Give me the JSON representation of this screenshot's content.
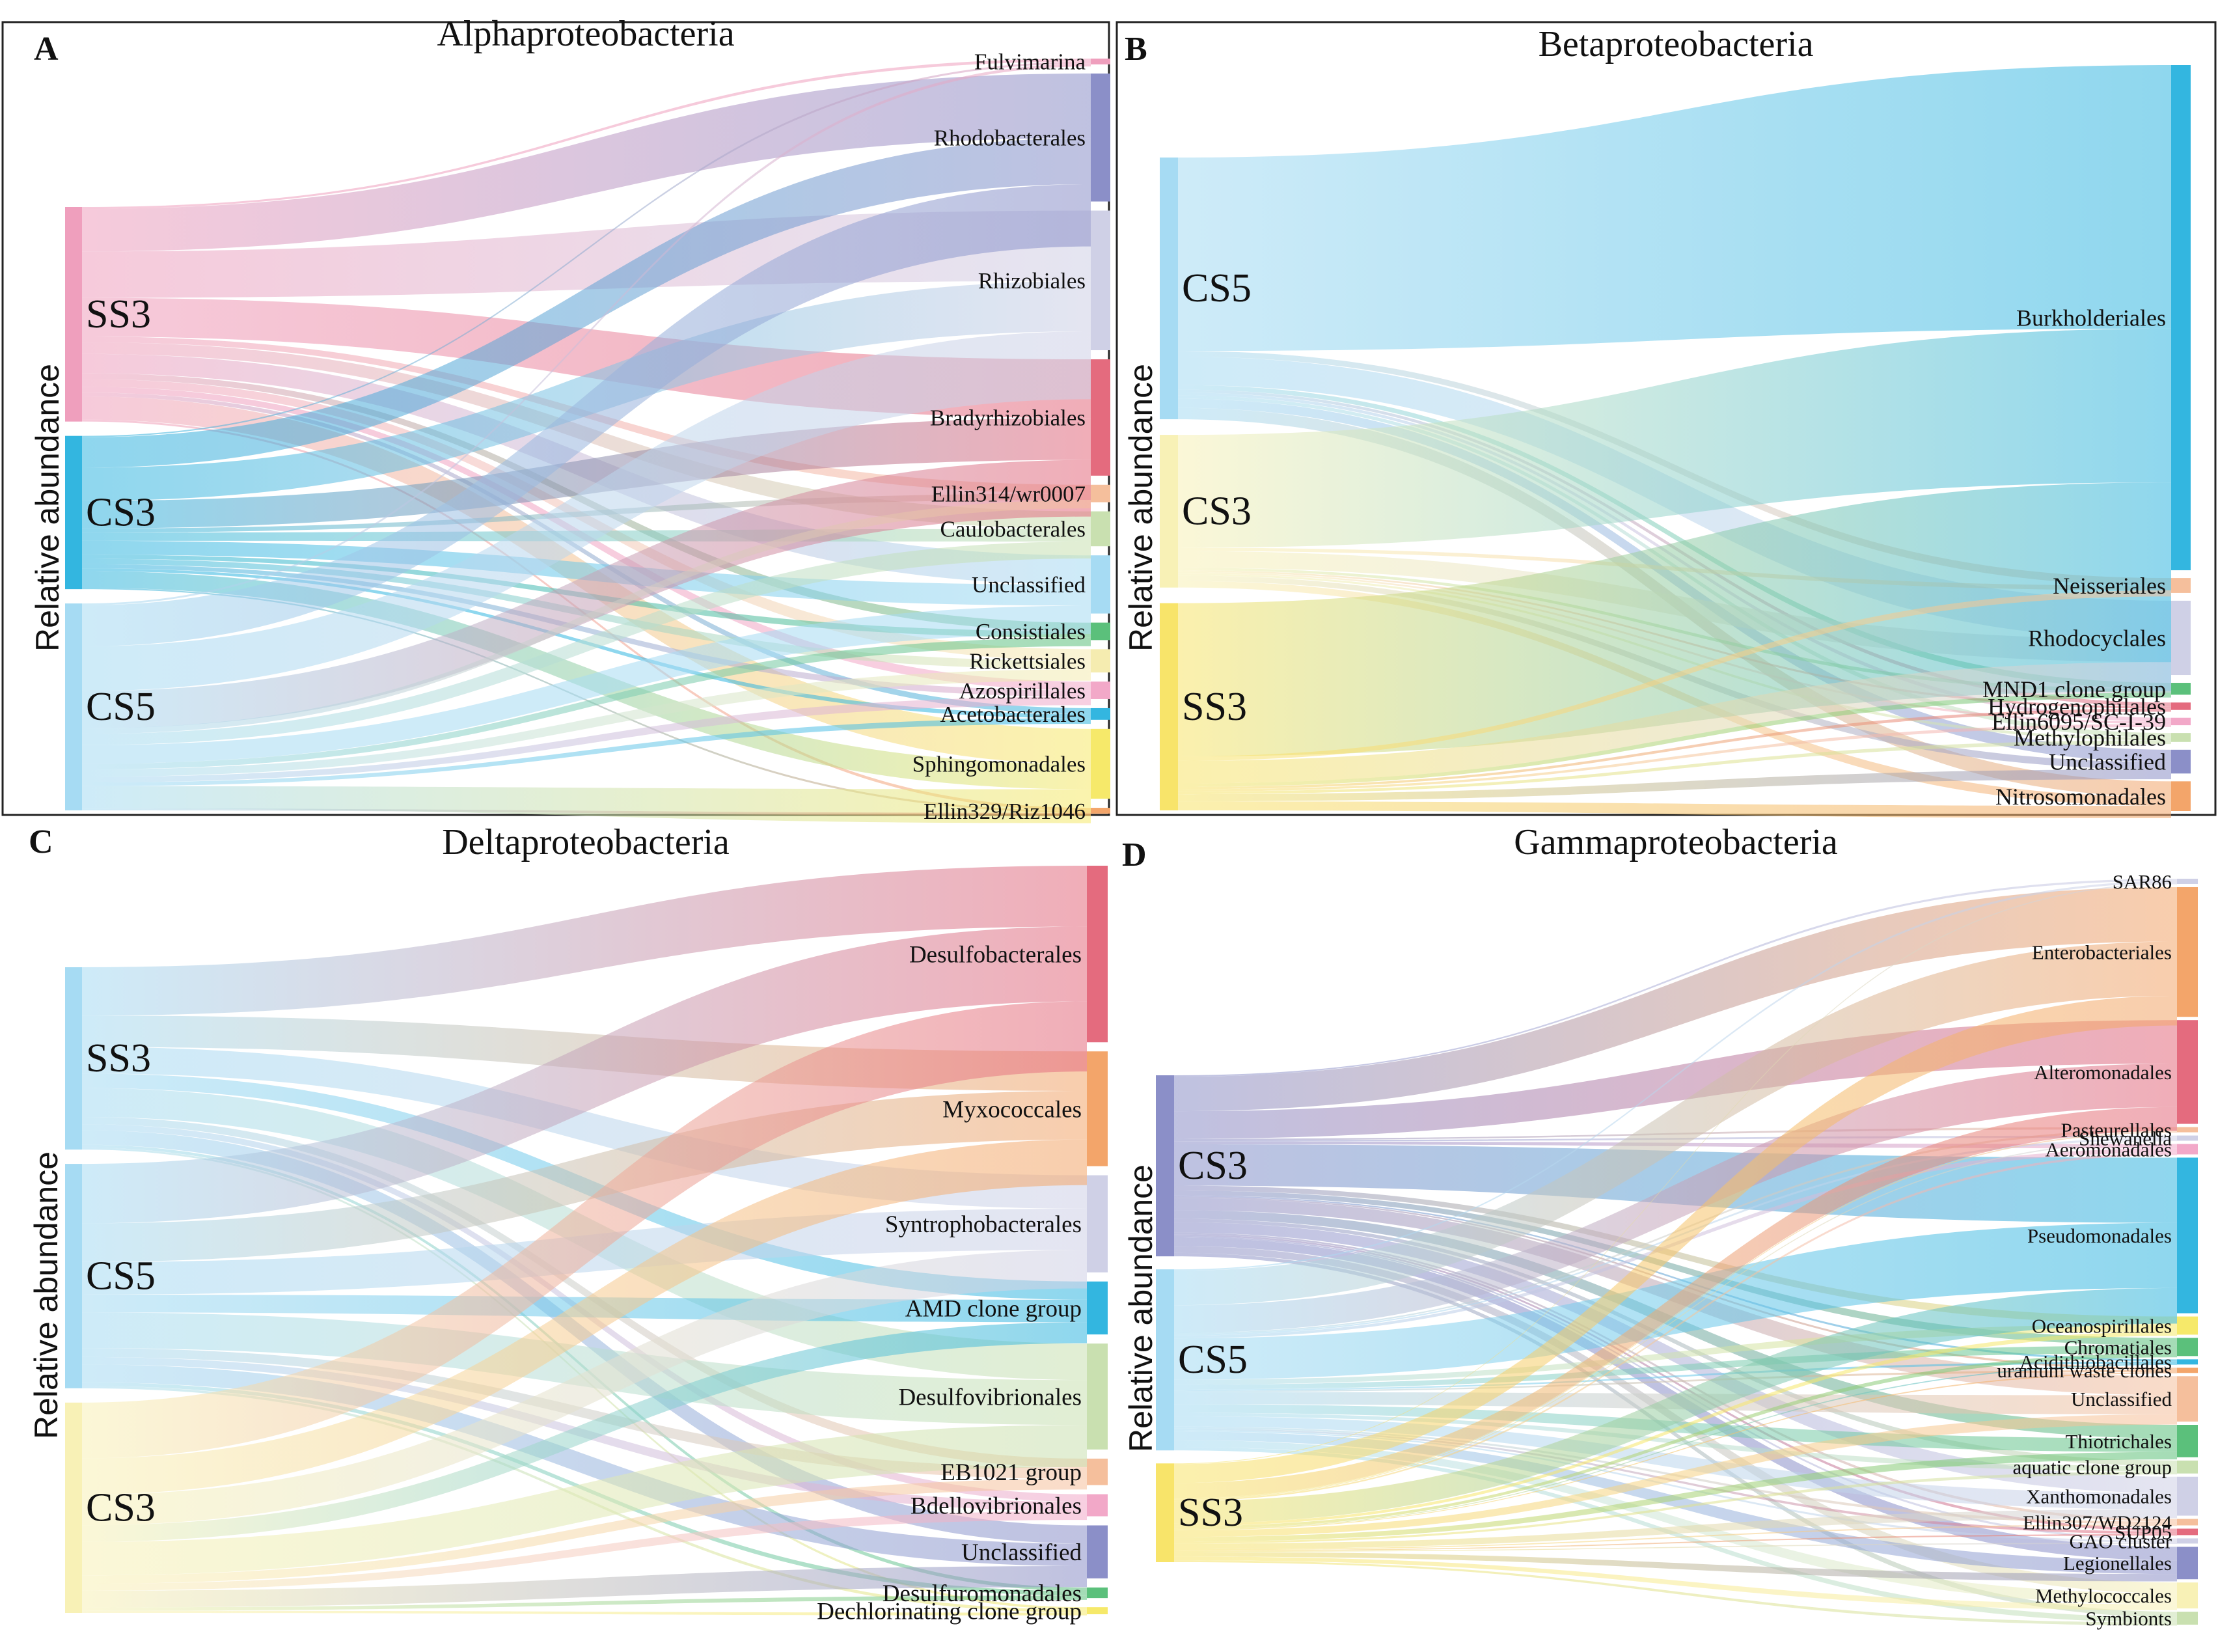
{
  "figure": {
    "y_axis_label": "Relative abundance"
  },
  "panels": [
    {
      "letter": "A",
      "title": "Alphaproteobacteria",
      "sources": [
        {
          "name": "SS3",
          "color": "#ef9fbd",
          "value": 28
        },
        {
          "name": "CS3",
          "color": "#33b6e0",
          "value": 20
        },
        {
          "name": "CS5",
          "color": "#a6dbf3",
          "value": 27
        }
      ],
      "targets": [
        {
          "name": "Fulvimarina",
          "color": "#ef9fbd",
          "value": 0.5
        },
        {
          "name": "Rhodobacterales",
          "color": "#8b8fc8",
          "value": 11
        },
        {
          "name": "Rhizobiales",
          "color": "#cfd0e6",
          "value": 12
        },
        {
          "name": "Bradyrhizobiales",
          "color": "#e46b7e",
          "value": 10
        },
        {
          "name": "Ellin314/wr0007",
          "color": "#f5bf9c",
          "value": 1.5
        },
        {
          "name": "Caulobacterales",
          "color": "#c9e0b0",
          "value": 3
        },
        {
          "name": "Unclassified",
          "color": "#a6dbf3",
          "value": 5
        },
        {
          "name": "Consistiales",
          "color": "#5bc07b",
          "value": 1.5
        },
        {
          "name": "Rickettsiales",
          "color": "#f5ecb0",
          "value": 2
        },
        {
          "name": "Azospirillales",
          "color": "#f2a8c8",
          "value": 1.5
        },
        {
          "name": "Acetobacterales",
          "color": "#33b6e0",
          "value": 1
        },
        {
          "name": "Sphingomonadales",
          "color": "#f6e96a",
          "value": 6
        },
        {
          "name": "Ellin329/Riz1046",
          "color": "#f3a56a",
          "value": 0.5
        }
      ]
    },
    {
      "letter": "B",
      "title": "Betaproteobacteria",
      "sources": [
        {
          "name": "CS5",
          "color": "#a6dbf3",
          "value": 24
        },
        {
          "name": "CS3",
          "color": "#f8f1b6",
          "value": 14
        },
        {
          "name": "SS3",
          "color": "#f8e46a",
          "value": 19
        }
      ],
      "targets": [
        {
          "name": "Burkholderiales",
          "color": "#33b6e0",
          "value": 34
        },
        {
          "name": "Neisseriales",
          "color": "#f5bf9c",
          "value": 1
        },
        {
          "name": "Rhodocyclales",
          "color": "#cfd0e6",
          "value": 5
        },
        {
          "name": "MND1 clone group",
          "color": "#5bc07b",
          "value": 0.8
        },
        {
          "name": "Hydrogenophilales",
          "color": "#e46b7e",
          "value": 0.5
        },
        {
          "name": "Ellin6095/SC-I-39",
          "color": "#f2a8c8",
          "value": 0.5
        },
        {
          "name": "Methylophilales",
          "color": "#c9e0b0",
          "value": 0.6
        },
        {
          "name": "Unclassified",
          "color": "#8b8fc8",
          "value": 1.6
        },
        {
          "name": "Nitrosomonadales",
          "color": "#f3a56a",
          "value": 2
        }
      ]
    },
    {
      "letter": "C",
      "title": "Deltaproteobacteria",
      "sources": [
        {
          "name": "SS3",
          "color": "#a6dbf3",
          "value": 26
        },
        {
          "name": "CS5",
          "color": "#a6dbf3",
          "value": 32
        },
        {
          "name": "CS3",
          "color": "#f8f1b6",
          "value": 30
        }
      ],
      "targets": [
        {
          "name": "Desulfobacterales",
          "color": "#e46b7e",
          "value": 20
        },
        {
          "name": "Myxococcales",
          "color": "#f3a56a",
          "value": 13
        },
        {
          "name": "Syntrophobacterales",
          "color": "#cfd0e6",
          "value": 11
        },
        {
          "name": "AMD clone group",
          "color": "#33b6e0",
          "value": 6
        },
        {
          "name": "Desulfovibrionales",
          "color": "#c9e0b0",
          "value": 12
        },
        {
          "name": "EB1021 group",
          "color": "#f5bf9c",
          "value": 3
        },
        {
          "name": "Bdellovibrionales",
          "color": "#f2a8c8",
          "value": 2.5
        },
        {
          "name": "Unclassified",
          "color": "#8b8fc8",
          "value": 6
        },
        {
          "name": "Desulfuromonadales",
          "color": "#5bc07b",
          "value": 1.2
        },
        {
          "name": "Dechlorinating clone group",
          "color": "#f6e96a",
          "value": 0.8
        }
      ]
    },
    {
      "letter": "D",
      "title": "Gammaproteobacteria",
      "sources": [
        {
          "name": "CS3",
          "color": "#8b8fc8",
          "value": 22
        },
        {
          "name": "CS5",
          "color": "#a6dbf3",
          "value": 22
        },
        {
          "name": "SS3",
          "color": "#f8e46a",
          "value": 12
        }
      ],
      "targets": [
        {
          "name": "SAR86",
          "color": "#cfd0e6",
          "value": 0.4
        },
        {
          "name": "Enterobacteriales",
          "color": "#f3a56a",
          "value": 10
        },
        {
          "name": "Alteromonadales",
          "color": "#e46b7e",
          "value": 8
        },
        {
          "name": "Pasteurellales",
          "color": "#f5bf9c",
          "value": 0.4
        },
        {
          "name": "Shewanella",
          "color": "#cfd0e6",
          "value": 0.4
        },
        {
          "name": "Aeromonadales",
          "color": "#f2a8c8",
          "value": 0.8
        },
        {
          "name": "Pseudomonadales",
          "color": "#33b6e0",
          "value": 12
        },
        {
          "name": "Oceanospirillales",
          "color": "#f6e96a",
          "value": 1.4
        },
        {
          "name": "Chromatiales",
          "color": "#5bc07b",
          "value": 1.4
        },
        {
          "name": "Acidithiobacillales",
          "color": "#33b6e0",
          "value": 0.4
        },
        {
          "name": "uranium waste clones",
          "color": "#f3a56a",
          "value": 0.4
        },
        {
          "name": "Unclassified",
          "color": "#f5bf9c",
          "value": 3.5
        },
        {
          "name": "Thiotrichales",
          "color": "#5bc07b",
          "value": 2.5
        },
        {
          "name": "aquatic clone group",
          "color": "#c9e0b0",
          "value": 1
        },
        {
          "name": "Xanthomonadales",
          "color": "#cfd0e6",
          "value": 3
        },
        {
          "name": "Ellin307/WD2124",
          "color": "#f5bf9c",
          "value": 0.5
        },
        {
          "name": "SUP05",
          "color": "#e46b7e",
          "value": 0.5
        },
        {
          "name": "GAO cluster",
          "color": "#cfd0e6",
          "value": 0.4
        },
        {
          "name": "Legionellales",
          "color": "#8b8fc8",
          "value": 2.5
        },
        {
          "name": "Methylococcales",
          "color": "#f8f1b6",
          "value": 2
        },
        {
          "name": "Symbionts",
          "color": "#c9e0b0",
          "value": 1
        }
      ]
    }
  ]
}
